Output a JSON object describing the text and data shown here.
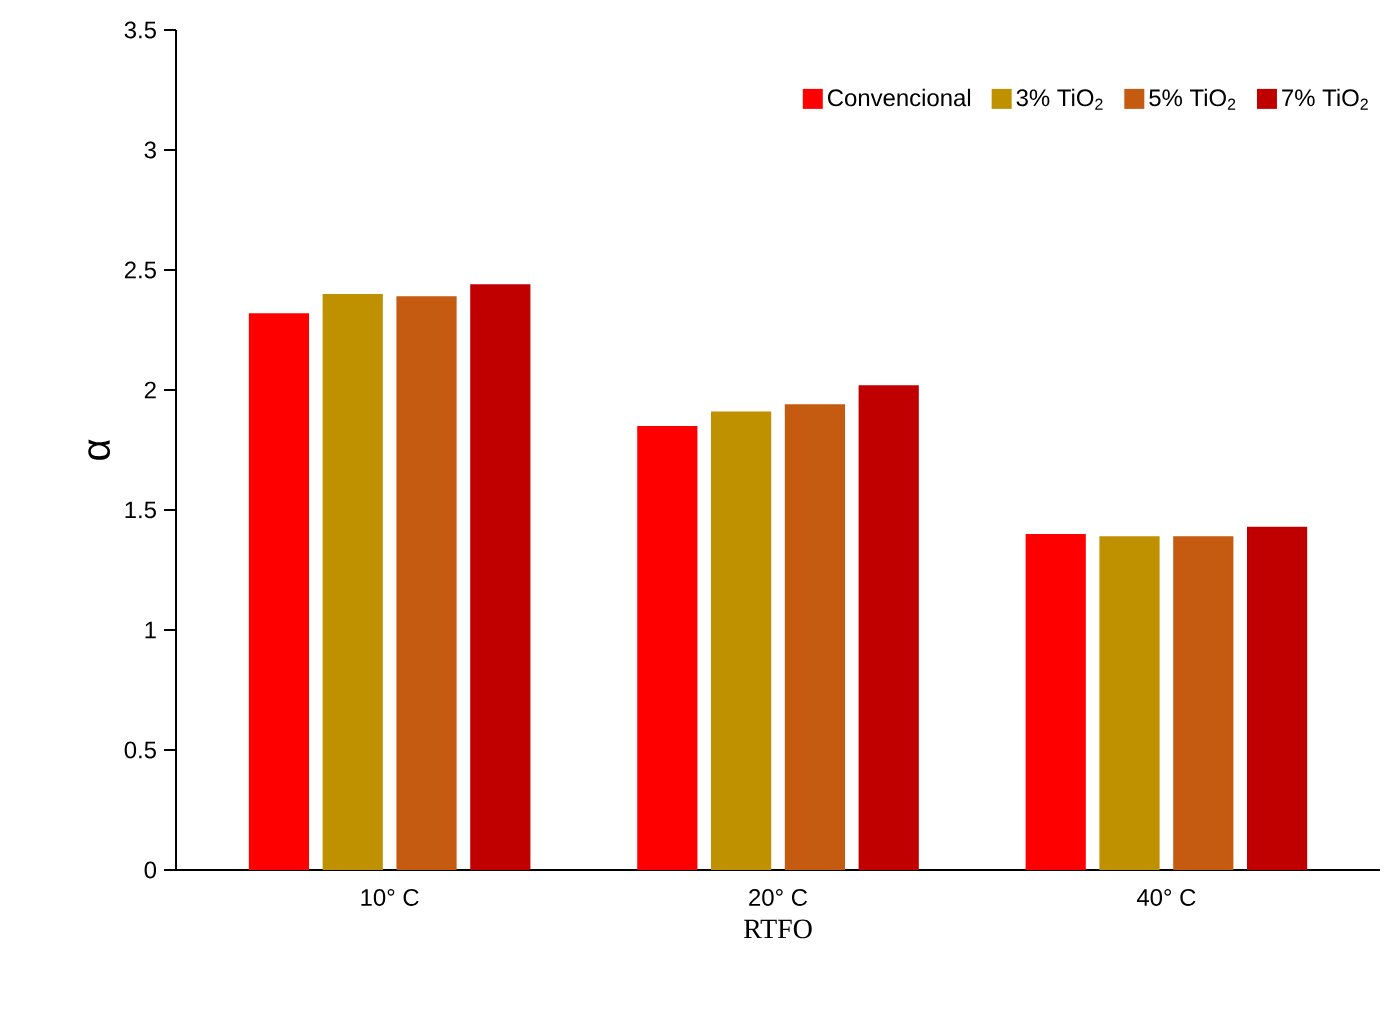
{
  "chart_data": {
    "type": "bar",
    "xlabel": "RTFO",
    "ylabel": "α",
    "categories": [
      "10° C",
      "20° C",
      "40° C"
    ],
    "series": [
      {
        "name": "Convencional",
        "color": "#ff0000",
        "values": [
          2.32,
          1.85,
          1.4
        ]
      },
      {
        "name": "3% TiO$_{2}$",
        "color": "#bf9000",
        "values": [
          2.4,
          1.91,
          1.39
        ]
      },
      {
        "name": "5% TiO$_{2}$",
        "color": "#c55a11",
        "values": [
          2.39,
          1.94,
          1.39
        ]
      },
      {
        "name": "7% TiO$_{2}$",
        "color": "#c00000",
        "values": [
          2.44,
          2.02,
          1.43
        ]
      }
    ],
    "ylim": [
      0,
      3.5
    ],
    "yticks": [
      0,
      0.5,
      1,
      1.5,
      2,
      2.5,
      3,
      3.5
    ],
    "grid": false,
    "legend": "top right"
  }
}
